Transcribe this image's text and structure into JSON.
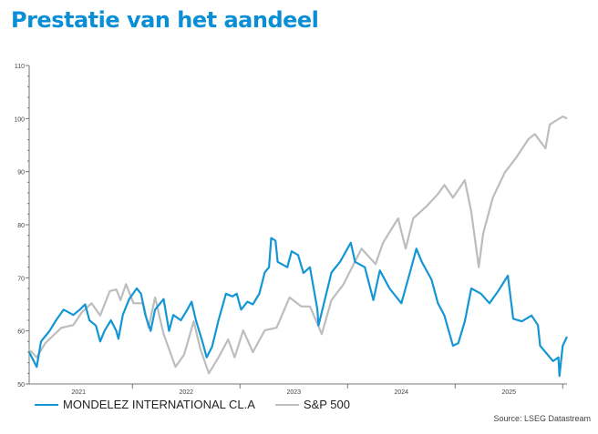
{
  "title": "Prestatie van het aandeel",
  "source": "Source: LSEG Datastream",
  "chart_data": {
    "type": "line",
    "title": "Prestatie van het aandeel",
    "xlabel": "",
    "ylabel": "",
    "ylim": [
      50,
      110
    ],
    "xlim": [
      2020.54,
      2025.54
    ],
    "yticks": [
      50,
      60,
      70,
      80,
      90,
      100,
      110
    ],
    "xtick_labels": [
      {
        "label": "2021",
        "x": 2021.0
      },
      {
        "label": "2022",
        "x": 2022.0
      },
      {
        "label": "2023",
        "x": 2023.0
      },
      {
        "label": "2024",
        "x": 2024.0
      },
      {
        "label": "2025",
        "x": 2025.0
      }
    ],
    "xticks": [
      2021.5,
      2022.5,
      2023.5,
      2024.5,
      2025.5
    ],
    "grid": false,
    "legend_position": "bottom-left",
    "series": [
      {
        "name": "MONDELEZ INTERNATIONAL CL.A",
        "color": "#1496d4",
        "x": [
          2020.54,
          2020.61,
          2020.65,
          2020.69,
          2020.73,
          2020.79,
          2020.86,
          2020.95,
          2021.01,
          2021.06,
          2021.1,
          2021.16,
          2021.2,
          2021.24,
          2021.3,
          2021.35,
          2021.37,
          2021.41,
          2021.47,
          2021.54,
          2021.58,
          2021.62,
          2021.67,
          2021.71,
          2021.75,
          2021.79,
          2021.84,
          2021.88,
          2021.95,
          2022.01,
          2022.05,
          2022.09,
          2022.15,
          2022.19,
          2022.24,
          2022.3,
          2022.37,
          2022.43,
          2022.47,
          2022.51,
          2022.57,
          2022.62,
          2022.68,
          2022.73,
          2022.77,
          2022.79,
          2022.83,
          2022.85,
          2022.94,
          2022.98,
          2023.04,
          2023.09,
          2023.15,
          2023.22,
          2023.23,
          2023.35,
          2023.43,
          2023.53,
          2023.57,
          2023.66,
          2023.74,
          2023.8,
          2023.89,
          2024.0,
          2024.08,
          2024.14,
          2024.19,
          2024.28,
          2024.34,
          2024.4,
          2024.48,
          2024.53,
          2024.59,
          2024.65,
          2024.74,
          2024.82,
          2024.9,
          2024.99,
          2025.04,
          2025.12,
          2025.21,
          2025.27,
          2025.29,
          2025.41,
          2025.46,
          2025.47,
          2025.5,
          2025.54
        ],
        "values": [
          56,
          53.2,
          58,
          59,
          60,
          62,
          64,
          63,
          64,
          65,
          62,
          61,
          58,
          60,
          62,
          60,
          58.5,
          63,
          66,
          68,
          67,
          63,
          60,
          64,
          65,
          66,
          60,
          63,
          62,
          64,
          65.5,
          62,
          58,
          55,
          57,
          62,
          67,
          66.5,
          67,
          64,
          65.5,
          65,
          67,
          71,
          72,
          77.5,
          77,
          73,
          72,
          75,
          74.3,
          70.9,
          72,
          64,
          61,
          71,
          73,
          76.6,
          73,
          72,
          65.8,
          71.4,
          68,
          65.2,
          71,
          75.5,
          73,
          69.7,
          65.2,
          62.9,
          57.2,
          57.7,
          61.8,
          68,
          67,
          65.2,
          67.5,
          70.4,
          62.3,
          61.8,
          62.9,
          61.1,
          57.2,
          54.3,
          55,
          51.5,
          57.2,
          58.9
        ]
      },
      {
        "name": "S&P 500",
        "color": "#bdbdbd",
        "x": [
          2020.55,
          2020.61,
          2020.69,
          2020.84,
          2020.95,
          2021.03,
          2021.12,
          2021.2,
          2021.29,
          2021.35,
          2021.39,
          2021.44,
          2021.51,
          2021.6,
          2021.65,
          2021.71,
          2021.79,
          2021.9,
          2021.98,
          2022.07,
          2022.13,
          2022.21,
          2022.3,
          2022.39,
          2022.45,
          2022.53,
          2022.62,
          2022.73,
          2022.84,
          2022.96,
          2023.07,
          2023.15,
          2023.26,
          2023.35,
          2023.46,
          2023.63,
          2023.76,
          2023.83,
          2023.97,
          2024.04,
          2024.11,
          2024.23,
          2024.34,
          2024.4,
          2024.48,
          2024.59,
          2024.65,
          2024.72,
          2024.76,
          2024.85,
          2024.96,
          2025.07,
          2025.18,
          2025.24,
          2025.34,
          2025.38,
          2025.5,
          2025.54
        ],
        "values": [
          56.3,
          55,
          57.7,
          60.6,
          61.1,
          63.5,
          65.2,
          62.9,
          67.5,
          67.8,
          65.8,
          68.8,
          65.2,
          65.2,
          60.6,
          66.3,
          59.4,
          53.2,
          55.5,
          61.8,
          56.7,
          52,
          55,
          58.4,
          55,
          60.1,
          56,
          60.1,
          60.6,
          66.3,
          64.6,
          64.6,
          59.4,
          65.8,
          68.7,
          75.5,
          72.6,
          76.6,
          81.2,
          75.5,
          81.2,
          83.4,
          85.8,
          87.5,
          85.1,
          88.4,
          82.4,
          72,
          78.3,
          85.1,
          89.8,
          92.7,
          96.1,
          97.1,
          94.4,
          98.9,
          100.4,
          100
        ]
      }
    ]
  }
}
